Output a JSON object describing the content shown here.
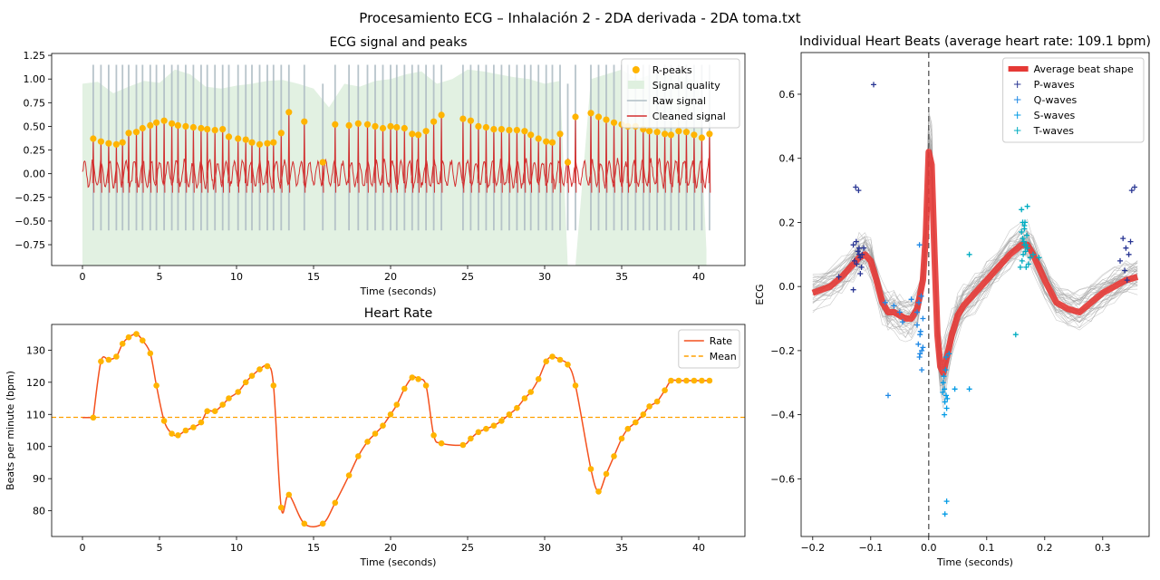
{
  "figure": {
    "suptitle": "Procesamiento ECG – Inhalación 2 - 2DA derivada - 2DA toma.txt"
  },
  "chart_data": [
    {
      "type": "line",
      "title": "ECG signal and peaks",
      "xlabel": "Time (seconds)",
      "ylabel": "",
      "xlim": [
        -2,
        43
      ],
      "ylim": [
        -0.97,
        1.27
      ],
      "xticks": [
        0,
        5,
        10,
        15,
        20,
        25,
        30,
        35,
        40
      ],
      "yticks": [
        -0.75,
        -0.5,
        -0.25,
        0.0,
        0.25,
        0.5,
        0.75,
        1.0,
        1.25
      ],
      "legend_position": "top-right",
      "legend": [
        "R-peaks",
        "Signal quality",
        "Raw signal",
        "Cleaned signal"
      ],
      "colors": {
        "rpeaks": "#FFB400",
        "quality": "#DFF0DF",
        "raw": "#B0BEC5",
        "cleaned": "#D32F2F"
      },
      "series": [
        {
          "name": "R-peaks",
          "kind": "scatter",
          "x": [
            0.7,
            1.2,
            1.7,
            2.2,
            2.6,
            3.0,
            3.5,
            3.9,
            4.4,
            4.8,
            5.3,
            5.8,
            6.2,
            6.7,
            7.2,
            7.7,
            8.1,
            8.6,
            9.1,
            9.5,
            10.1,
            10.6,
            11.0,
            11.5,
            12.0,
            12.4,
            12.9,
            13.4,
            14.4,
            15.6,
            16.4,
            17.3,
            17.9,
            18.5,
            19.0,
            19.5,
            20.0,
            20.4,
            20.9,
            21.4,
            21.8,
            22.3,
            22.8,
            23.3,
            24.7,
            25.2,
            25.7,
            26.2,
            26.7,
            27.2,
            27.7,
            28.2,
            28.7,
            29.1,
            29.6,
            30.1,
            30.5,
            31.0,
            31.5,
            32.0,
            33.0,
            33.5,
            34.0,
            34.5,
            35.0,
            35.4,
            35.9,
            36.4,
            36.8,
            37.3,
            37.8,
            38.2,
            38.7,
            39.2,
            39.7,
            40.2,
            40.7
          ],
          "y": [
            0.37,
            0.34,
            0.32,
            0.31,
            0.33,
            0.43,
            0.44,
            0.48,
            0.51,
            0.54,
            0.56,
            0.53,
            0.51,
            0.5,
            0.49,
            0.48,
            0.47,
            0.46,
            0.47,
            0.39,
            0.37,
            0.36,
            0.33,
            0.31,
            0.32,
            0.33,
            0.43,
            0.65,
            0.55,
            0.12,
            0.52,
            0.51,
            0.53,
            0.52,
            0.5,
            0.48,
            0.5,
            0.49,
            0.48,
            0.42,
            0.41,
            0.45,
            0.55,
            0.62,
            0.58,
            0.56,
            0.5,
            0.49,
            0.47,
            0.47,
            0.46,
            0.46,
            0.45,
            0.41,
            0.37,
            0.34,
            0.33,
            0.42,
            0.12,
            0.6,
            0.64,
            0.6,
            0.57,
            0.54,
            0.52,
            0.5,
            0.5,
            0.47,
            0.45,
            0.44,
            0.42,
            0.41,
            0.45,
            0.44,
            0.41,
            0.38,
            0.42
          ]
        },
        {
          "name": "Signal quality",
          "kind": "area",
          "x": [
            0,
            1,
            2,
            3,
            4,
            5,
            6,
            7,
            8,
            9,
            10,
            11,
            12,
            13,
            14,
            15,
            16,
            17,
            18,
            19,
            20,
            21,
            22,
            23,
            24,
            25,
            26,
            27,
            28,
            29,
            30,
            31,
            31.5,
            32,
            33,
            34,
            35,
            36,
            37,
            38,
            39,
            40,
            40.5
          ],
          "y": [
            0.95,
            0.97,
            0.85,
            0.92,
            0.98,
            0.96,
            1.1,
            1.05,
            0.92,
            0.9,
            0.93,
            0.95,
            0.98,
            0.99,
            0.95,
            0.9,
            0.7,
            0.95,
            0.92,
            0.98,
            1.0,
            1.05,
            1.08,
            0.95,
            1.0,
            1.1,
            1.08,
            1.05,
            1.02,
            1.0,
            0.95,
            0.98,
            -0.97,
            -0.97,
            1.0,
            1.05,
            1.1,
            1.0,
            1.05,
            1.08,
            1.02,
            0.98,
            -0.8
          ]
        },
        {
          "name": "Raw signal",
          "kind": "line",
          "note": "spiky trace around the cleaned signal"
        },
        {
          "name": "Cleaned signal",
          "kind": "line",
          "note": "dense oscillation between -0.3 and 0.3 with R-peaks"
        }
      ]
    },
    {
      "type": "line",
      "title": "Heart Rate",
      "xlabel": "Time (seconds)",
      "ylabel": "Beats per minute (bpm)",
      "xlim": [
        -2,
        43
      ],
      "ylim": [
        72,
        138
      ],
      "xticks": [
        0,
        5,
        10,
        15,
        20,
        25,
        30,
        35,
        40
      ],
      "yticks": [
        80,
        90,
        100,
        110,
        120,
        130
      ],
      "legend_position": "top-right",
      "legend": [
        "Rate",
        "Mean"
      ],
      "mean": 109.1,
      "colors": {
        "rate": "#F4511E",
        "mean": "#FFA000",
        "points": "#FFB400"
      },
      "series": [
        {
          "name": "Rate",
          "x": [
            0.7,
            1.2,
            1.7,
            2.2,
            2.6,
            3.0,
            3.5,
            3.9,
            4.4,
            4.8,
            5.3,
            5.8,
            6.2,
            6.7,
            7.2,
            7.7,
            8.1,
            8.6,
            9.1,
            9.5,
            10.1,
            10.6,
            11.0,
            11.5,
            12.0,
            12.4,
            12.9,
            13.4,
            14.4,
            15.6,
            16.4,
            17.3,
            17.9,
            18.5,
            19.0,
            19.5,
            20.0,
            20.4,
            20.9,
            21.4,
            21.8,
            22.3,
            22.8,
            23.3,
            24.7,
            25.2,
            25.7,
            26.2,
            26.7,
            27.2,
            27.7,
            28.2,
            28.7,
            29.1,
            29.6,
            30.1,
            30.5,
            31.0,
            31.5,
            32.0,
            33.0,
            33.5,
            34.0,
            34.5,
            35.0,
            35.4,
            35.9,
            36.4,
            36.8,
            37.3,
            37.8,
            38.2,
            38.7,
            39.2,
            39.7,
            40.2,
            40.7
          ],
          "y": [
            109,
            126.5,
            127,
            128,
            132,
            134,
            135,
            133,
            129,
            119,
            108,
            104,
            103.5,
            105,
            106,
            107.5,
            111,
            111,
            113,
            115,
            117,
            120,
            122,
            124,
            125,
            119,
            81,
            85,
            76,
            76,
            82.5,
            91,
            97,
            101.5,
            104,
            106.5,
            110,
            113,
            118,
            121.5,
            121,
            119,
            103.5,
            101,
            100.5,
            102.5,
            104.5,
            105.5,
            106.5,
            108,
            110,
            112,
            115,
            117,
            121,
            126.5,
            128,
            127,
            125.5,
            119,
            93,
            86,
            91.5,
            97,
            102.5,
            105.5,
            107.5,
            110,
            112.5,
            114,
            117.5,
            120.5,
            120.5,
            120.5,
            120.5,
            120.5,
            120.5
          ]
        },
        {
          "name": "Mean",
          "y": 109.1
        }
      ]
    },
    {
      "type": "line",
      "title": "Individual Heart Beats (average heart rate: 109.1 bpm)",
      "xlabel": "Time (seconds)",
      "ylabel": "ECG",
      "xlim": [
        -0.22,
        0.38
      ],
      "ylim": [
        -0.78,
        0.73
      ],
      "xticks": [
        -0.2,
        -0.1,
        0.0,
        0.1,
        0.2,
        0.3
      ],
      "yticks": [
        -0.6,
        -0.4,
        -0.2,
        0.0,
        0.2,
        0.4,
        0.6
      ],
      "legend_position": "top-right",
      "legend": [
        "Average beat shape",
        "P-waves",
        "Q-waves",
        "S-waves",
        "T-waves"
      ],
      "colors": {
        "average": "#E53935",
        "beats": "#9E9E9E",
        "pwaves": "#283593",
        "qwaves": "#1E88E5",
        "swaves": "#039BE5",
        "twaves": "#00ACC1",
        "vline": "#555555"
      },
      "series": [
        {
          "name": "Average beat shape",
          "x": [
            -0.2,
            -0.17,
            -0.15,
            -0.13,
            -0.12,
            -0.11,
            -0.1,
            -0.09,
            -0.08,
            -0.07,
            -0.06,
            -0.05,
            -0.04,
            -0.03,
            -0.02,
            -0.01,
            -0.005,
            0.0,
            0.005,
            0.01,
            0.015,
            0.02,
            0.025,
            0.03,
            0.04,
            0.05,
            0.06,
            0.08,
            0.1,
            0.12,
            0.14,
            0.16,
            0.17,
            0.18,
            0.2,
            0.22,
            0.24,
            0.26,
            0.28,
            0.3,
            0.32,
            0.34,
            0.36
          ],
          "y": [
            -0.02,
            0.0,
            0.03,
            0.07,
            0.09,
            0.1,
            0.08,
            0.02,
            -0.05,
            -0.08,
            -0.08,
            -0.09,
            -0.1,
            -0.1,
            -0.07,
            0.02,
            0.16,
            0.42,
            0.38,
            0.1,
            -0.15,
            -0.25,
            -0.27,
            -0.23,
            -0.15,
            -0.09,
            -0.06,
            -0.02,
            0.02,
            0.06,
            0.1,
            0.13,
            0.13,
            0.1,
            0.02,
            -0.05,
            -0.07,
            -0.08,
            -0.05,
            -0.02,
            0.0,
            0.02,
            0.03
          ]
        },
        {
          "name": "P-waves",
          "x": [
            -0.125,
            -0.12,
            -0.115,
            -0.13,
            -0.122,
            -0.118,
            -0.128,
            -0.112,
            -0.124,
            -0.12,
            -0.116,
            -0.155,
            -0.13,
            -0.126,
            -0.095,
            -0.121,
            -0.118,
            0.335,
            0.34,
            0.345,
            0.35,
            0.355,
            0.33,
            0.338,
            0.342,
            0.348
          ],
          "y": [
            0.14,
            0.12,
            0.1,
            0.13,
            0.11,
            0.09,
            0.08,
            0.12,
            0.07,
            0.1,
            0.06,
            0.03,
            -0.01,
            0.31,
            0.63,
            0.3,
            0.04,
            0.15,
            0.12,
            0.1,
            0.3,
            0.31,
            0.08,
            0.05,
            0.02,
            0.14
          ]
        },
        {
          "name": "Q-waves",
          "x": [
            -0.02,
            -0.015,
            -0.018,
            -0.012,
            -0.016,
            -0.01,
            -0.014,
            -0.02,
            -0.017,
            -0.013,
            -0.07,
            -0.06,
            -0.05,
            -0.045,
            -0.03,
            -0.075,
            -0.016,
            -0.012,
            -0.015,
            -0.01
          ],
          "y": [
            -0.12,
            -0.15,
            -0.18,
            -0.2,
            -0.22,
            -0.1,
            -0.14,
            -0.08,
            -0.05,
            -0.03,
            -0.34,
            -0.06,
            -0.08,
            -0.11,
            -0.04,
            -0.05,
            0.13,
            -0.26,
            -0.21,
            -0.19
          ]
        },
        {
          "name": "S-waves",
          "x": [
            0.025,
            0.027,
            0.03,
            0.028,
            0.026,
            0.029,
            0.031,
            0.024,
            0.032,
            0.03,
            0.027,
            0.035,
            0.045,
            0.07,
            0.031,
            0.028
          ],
          "y": [
            -0.3,
            -0.32,
            -0.34,
            -0.36,
            -0.28,
            -0.26,
            -0.38,
            -0.33,
            -0.35,
            -0.22,
            -0.4,
            -0.21,
            -0.32,
            -0.32,
            -0.67,
            -0.71
          ]
        },
        {
          "name": "T-waves",
          "x": [
            0.16,
            0.162,
            0.165,
            0.168,
            0.17,
            0.163,
            0.166,
            0.161,
            0.169,
            0.164,
            0.167,
            0.172,
            0.158,
            0.175,
            0.18,
            0.19,
            0.16,
            0.17,
            0.165,
            0.15,
            0.07,
            0.165,
            0.168,
            0.162
          ],
          "y": [
            0.17,
            0.15,
            0.19,
            0.13,
            0.12,
            0.1,
            0.2,
            0.08,
            0.16,
            0.14,
            0.11,
            0.07,
            0.06,
            0.09,
            0.1,
            0.09,
            0.24,
            0.25,
            0.18,
            -0.15,
            0.1,
            0.13,
            0.06,
            0.2
          ]
        }
      ]
    }
  ]
}
